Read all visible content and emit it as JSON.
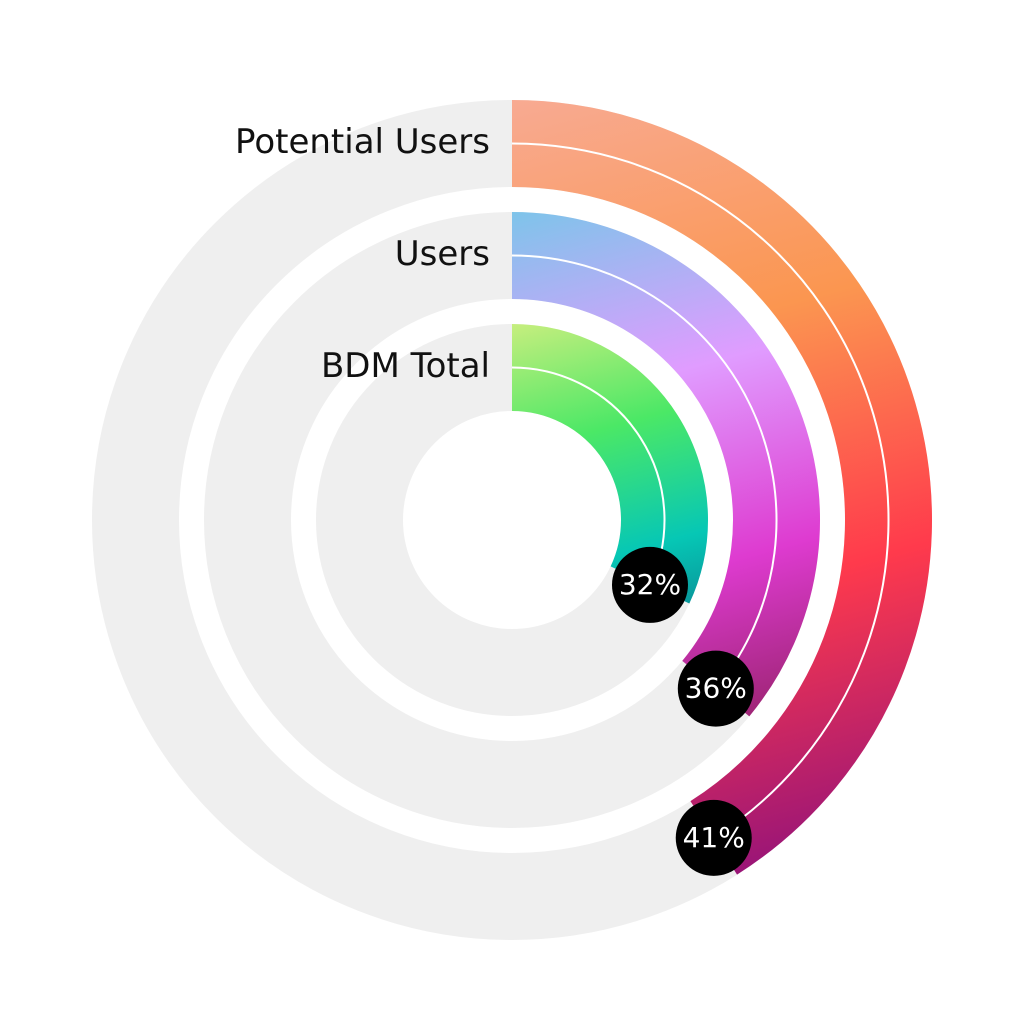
{
  "chart_data": {
    "type": "radial_bar",
    "categories": [
      "Potential Users",
      "Users",
      "BDM Total"
    ],
    "values": [
      41,
      36,
      32
    ],
    "value_labels": [
      "41%",
      "36%",
      "32%"
    ],
    "colors": [
      [
        "#f8aa92",
        "#fb9650",
        "#ff3a4c",
        "#9a1577"
      ],
      [
        "#7ec4ea",
        "#e09cff",
        "#de3bd0",
        "#8e1f5e"
      ],
      [
        "#c6ee7e",
        "#4be866",
        "#06c7b5",
        "#0a6f86"
      ]
    ],
    "track_color": "#efefef"
  }
}
